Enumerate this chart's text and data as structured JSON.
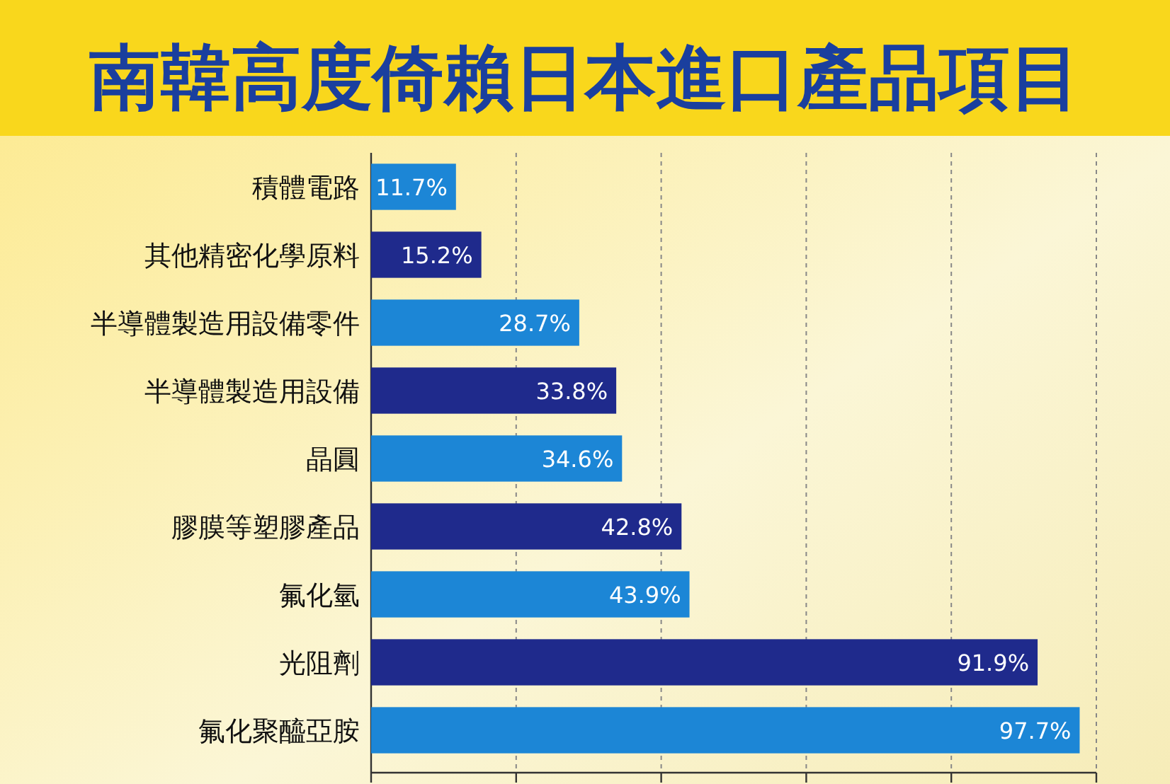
{
  "chart_data": {
    "type": "bar",
    "orientation": "horizontal",
    "title": "南韓高度倚賴日本進口產品項目",
    "categories": [
      "積體電路",
      "其他精密化學原料",
      "半導體製造用設備零件",
      "半導體製造用設備",
      "晶圓",
      "膠膜等塑膠產品",
      "氟化氫",
      "光阻劑",
      "氟化聚醯亞胺"
    ],
    "values": [
      11.7,
      15.2,
      28.7,
      33.8,
      34.6,
      42.8,
      43.9,
      91.9,
      97.7
    ],
    "value_labels": [
      "11.7%",
      "15.2%",
      "28.7%",
      "33.8%",
      "34.6%",
      "42.8%",
      "43.9%",
      "91.9%",
      "97.7%"
    ],
    "colors": [
      "#1c86d6",
      "#1f2a8c",
      "#1c86d6",
      "#1f2a8c",
      "#1c86d6",
      "#1f2a8c",
      "#1c86d6",
      "#1f2a8c",
      "#1c86d6"
    ],
    "xlim": [
      0,
      100
    ],
    "xticks": [
      {
        "value": 0,
        "label": null
      },
      {
        "value": 20,
        "label": null
      },
      {
        "value": 40,
        "label": null
      },
      {
        "value": 60,
        "label": null
      },
      {
        "value": 80,
        "label": null
      },
      {
        "value": 100,
        "label": null
      }
    ],
    "grid": "x",
    "tick_labels": "y"
  }
}
